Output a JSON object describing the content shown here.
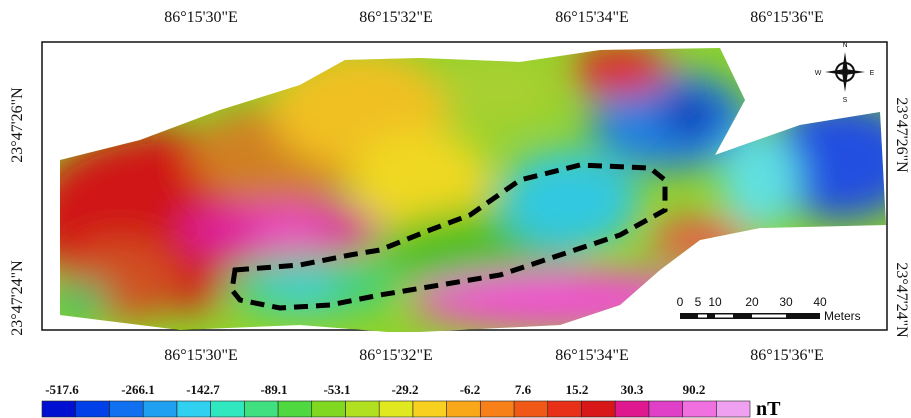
{
  "map": {
    "top_labels": [
      "86°15'30\"E",
      "86°15'32\"E",
      "86°15'34\"E",
      "86°15'36\"E"
    ],
    "bottom_labels": [
      "86°15'30\"E",
      "86°15'32\"E",
      "86°15'34\"E",
      "86°15'36\"E"
    ],
    "left_labels": [
      "23°47'26\"N",
      "23°47'24\"N"
    ],
    "right_labels": [
      "23°47'26\"N",
      "23°47'24\"N"
    ],
    "compass": [
      "N",
      "E",
      "S",
      "W"
    ],
    "scale_bar": {
      "ticks": [
        "0",
        "5",
        "10",
        "20",
        "30",
        "40"
      ],
      "unit": "Meters"
    },
    "legend": {
      "labels": [
        "-517.6",
        "-266.1",
        "-142.7",
        "-89.1",
        "-53.1",
        "-29.2",
        "-6.2",
        "7.6",
        "15.2",
        "30.3",
        "90.2"
      ],
      "unit": "nT"
    }
  }
}
